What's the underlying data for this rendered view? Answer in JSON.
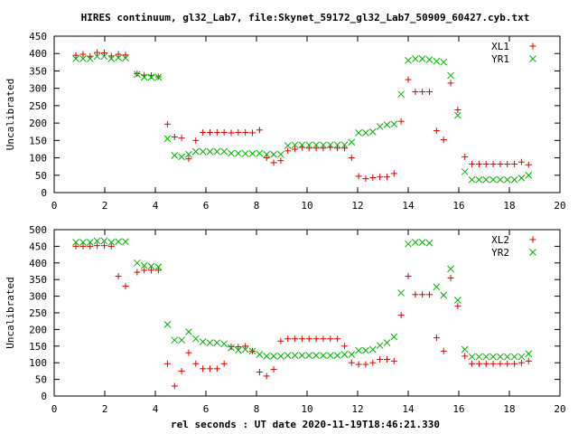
{
  "title": "HIRES continuum, gl32_Lab7, file:Skynet_59172_gl32_Lab7_50909_60427.cyb.txt",
  "xlabel": "rel seconds : UT date 2020-11-19T18:46:21.330",
  "colors": {
    "red": "#e00000",
    "green": "#00b000"
  },
  "chart_data": [
    {
      "type": "scatter",
      "ylabel": "Uncalibrated",
      "xlim": [
        0,
        20
      ],
      "ylim": [
        0,
        450
      ],
      "xticks": [
        0,
        2,
        4,
        6,
        8,
        10,
        12,
        14,
        16,
        18,
        20
      ],
      "yticks": [
        0,
        50,
        100,
        150,
        200,
        250,
        300,
        350,
        400,
        450
      ],
      "legend_position": "top-right",
      "series": [
        {
          "name": "XL1",
          "marker": "plus",
          "color": "#e00000",
          "x": [
            0.86,
            1.14,
            1.42,
            1.7,
            1.98,
            2.26,
            2.54,
            2.82,
            3.28,
            3.56,
            3.84,
            4.12,
            4.48,
            4.76,
            5.04,
            5.32,
            5.6,
            5.88,
            6.16,
            6.44,
            6.72,
            7.0,
            7.28,
            7.56,
            7.84,
            8.12,
            8.4,
            8.68,
            8.96,
            9.24,
            9.52,
            9.8,
            10.08,
            10.36,
            10.64,
            10.92,
            11.2,
            11.48,
            11.76,
            12.04,
            12.32,
            12.6,
            12.88,
            13.16,
            13.44,
            13.72,
            14.0,
            14.28,
            14.56,
            14.84,
            15.12,
            15.4,
            15.68,
            15.96,
            16.24,
            16.52,
            16.8,
            17.08,
            17.36,
            17.64,
            17.92,
            18.2,
            18.48,
            18.76
          ],
          "y": [
            395,
            398,
            392,
            403,
            402,
            393,
            398,
            396,
            342,
            338,
            337,
            333,
            197,
            160,
            157,
            97,
            150,
            173,
            173,
            173,
            173,
            172,
            173,
            173,
            172,
            180,
            100,
            86,
            92,
            120,
            125,
            130,
            128,
            128,
            128,
            130,
            128,
            128,
            100,
            47,
            40,
            43,
            45,
            45,
            55,
            205,
            325,
            290,
            290,
            290,
            178,
            152,
            315,
            238,
            103,
            82,
            82,
            82,
            82,
            82,
            82,
            82,
            88,
            80
          ]
        },
        {
          "name": "YR1",
          "marker": "x",
          "color": "#00b000",
          "x": [
            0.86,
            1.14,
            1.42,
            1.7,
            1.98,
            2.26,
            2.54,
            2.82,
            3.28,
            3.56,
            3.84,
            4.12,
            4.48,
            4.76,
            5.04,
            5.32,
            5.6,
            5.88,
            6.16,
            6.44,
            6.72,
            7.0,
            7.28,
            7.56,
            7.84,
            8.12,
            8.4,
            8.68,
            8.96,
            9.24,
            9.52,
            9.8,
            10.08,
            10.36,
            10.64,
            10.92,
            11.2,
            11.48,
            11.76,
            12.04,
            12.32,
            12.6,
            12.88,
            13.16,
            13.44,
            13.72,
            14.0,
            14.28,
            14.56,
            14.84,
            15.12,
            15.4,
            15.68,
            15.96,
            16.24,
            16.52,
            16.8,
            17.08,
            17.36,
            17.64,
            17.92,
            18.2,
            18.48,
            18.76
          ],
          "y": [
            385,
            385,
            385,
            392,
            392,
            385,
            388,
            387,
            340,
            332,
            332,
            332,
            155,
            107,
            103,
            110,
            118,
            118,
            118,
            118,
            118,
            113,
            113,
            112,
            112,
            113,
            110,
            110,
            110,
            135,
            137,
            137,
            137,
            137,
            137,
            137,
            137,
            137,
            145,
            172,
            172,
            175,
            190,
            195,
            197,
            283,
            380,
            385,
            385,
            382,
            378,
            375,
            337,
            222,
            60,
            37,
            37,
            37,
            37,
            37,
            37,
            37,
            42,
            50
          ]
        }
      ]
    },
    {
      "type": "scatter",
      "ylabel": "Uncalibrated",
      "xlim": [
        0,
        20
      ],
      "ylim": [
        0,
        500
      ],
      "xticks": [
        0,
        2,
        4,
        6,
        8,
        10,
        12,
        14,
        16,
        18,
        20
      ],
      "yticks": [
        0,
        50,
        100,
        150,
        200,
        250,
        300,
        350,
        400,
        450,
        500
      ],
      "legend_position": "top-right",
      "series": [
        {
          "name": "XL2",
          "marker": "plus",
          "color": "#e00000",
          "x": [
            0.86,
            1.14,
            1.42,
            1.7,
            1.98,
            2.26,
            2.54,
            2.82,
            3.28,
            3.56,
            3.84,
            4.12,
            4.48,
            4.76,
            5.04,
            5.32,
            5.6,
            5.88,
            6.16,
            6.44,
            6.72,
            7.0,
            7.28,
            7.56,
            7.84,
            8.12,
            8.4,
            8.68,
            8.96,
            9.24,
            9.52,
            9.8,
            10.08,
            10.36,
            10.64,
            10.92,
            11.2,
            11.48,
            11.76,
            12.04,
            12.32,
            12.6,
            12.88,
            13.16,
            13.44,
            13.72,
            14.0,
            14.28,
            14.56,
            14.84,
            15.12,
            15.4,
            15.68,
            15.96,
            16.24,
            16.52,
            16.8,
            17.08,
            17.36,
            17.64,
            17.92,
            18.2,
            18.48,
            18.76
          ],
          "y": [
            450,
            450,
            450,
            452,
            452,
            450,
            360,
            330,
            372,
            378,
            378,
            378,
            97,
            30,
            75,
            130,
            97,
            82,
            82,
            82,
            97,
            148,
            148,
            150,
            135,
            72,
            60,
            80,
            165,
            172,
            172,
            172,
            172,
            172,
            172,
            172,
            172,
            150,
            100,
            95,
            95,
            100,
            110,
            110,
            105,
            243,
            360,
            305,
            305,
            305,
            175,
            135,
            355,
            270,
            120,
            97,
            97,
            97,
            97,
            97,
            97,
            97,
            100,
            105
          ]
        },
        {
          "name": "YR2",
          "marker": "x",
          "color": "#00b000",
          "x": [
            0.86,
            1.14,
            1.42,
            1.7,
            1.98,
            2.26,
            2.54,
            2.82,
            3.28,
            3.56,
            3.84,
            4.12,
            4.48,
            4.76,
            5.04,
            5.32,
            5.6,
            5.88,
            6.16,
            6.44,
            6.72,
            7.0,
            7.28,
            7.56,
            7.84,
            8.12,
            8.4,
            8.68,
            8.96,
            9.24,
            9.52,
            9.8,
            10.08,
            10.36,
            10.64,
            10.92,
            11.2,
            11.48,
            11.76,
            12.04,
            12.32,
            12.6,
            12.88,
            13.16,
            13.44,
            13.72,
            14.0,
            14.28,
            14.56,
            14.84,
            15.12,
            15.4,
            15.68,
            15.96,
            16.24,
            16.52,
            16.8,
            17.08,
            17.36,
            17.64,
            17.92,
            18.2,
            18.48,
            18.76
          ],
          "y": [
            462,
            462,
            462,
            466,
            466,
            462,
            464,
            464,
            400,
            392,
            390,
            388,
            215,
            168,
            168,
            193,
            172,
            163,
            160,
            160,
            157,
            145,
            138,
            140,
            135,
            125,
            120,
            120,
            120,
            122,
            122,
            122,
            122,
            122,
            122,
            122,
            122,
            125,
            125,
            137,
            137,
            140,
            152,
            160,
            178,
            310,
            457,
            462,
            462,
            460,
            328,
            303,
            382,
            288,
            140,
            118,
            118,
            118,
            118,
            118,
            118,
            118,
            118,
            127
          ]
        }
      ]
    }
  ]
}
